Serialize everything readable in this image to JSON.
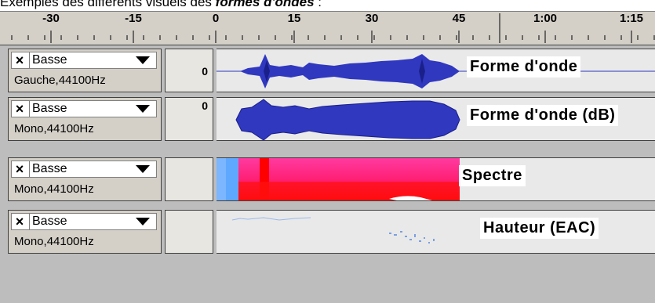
{
  "caption": {
    "prefix": "Exemples des différents visuels des ",
    "emph": "formes d'ondes",
    "suffix": " :"
  },
  "ruler": {
    "ticks": [
      "-30",
      "-15",
      "0",
      "15",
      "30",
      "45",
      "1:00",
      "1:15"
    ]
  },
  "tracks": [
    {
      "name": "Basse",
      "info": "Gauche,44100Hz",
      "vruler": "0",
      "label": "Forme d'onde",
      "view": "waveform"
    },
    {
      "name": "Basse",
      "info": "Mono,44100Hz",
      "vruler": "0",
      "label": "Forme d'onde (dB)",
      "view": "waveform-db"
    },
    {
      "name": "Basse",
      "info": "Mono,44100Hz",
      "vruler": "",
      "label": "Spectre",
      "view": "spectrum"
    },
    {
      "name": "Basse",
      "info": "Mono,44100Hz",
      "vruler": "",
      "label": "Hauteur (EAC)",
      "view": "pitch"
    }
  ],
  "colors": {
    "waveform": "#3038c0",
    "waveform_dark": "#1a1f8a",
    "spectrum_pink": "#ff2080",
    "spectrum_red": "#ff1010",
    "spectrum_blue": "#5fa8ff",
    "pitch": "#7ba0e0"
  },
  "icons": {
    "close": "close-icon",
    "menu": "chevron-down-icon"
  }
}
